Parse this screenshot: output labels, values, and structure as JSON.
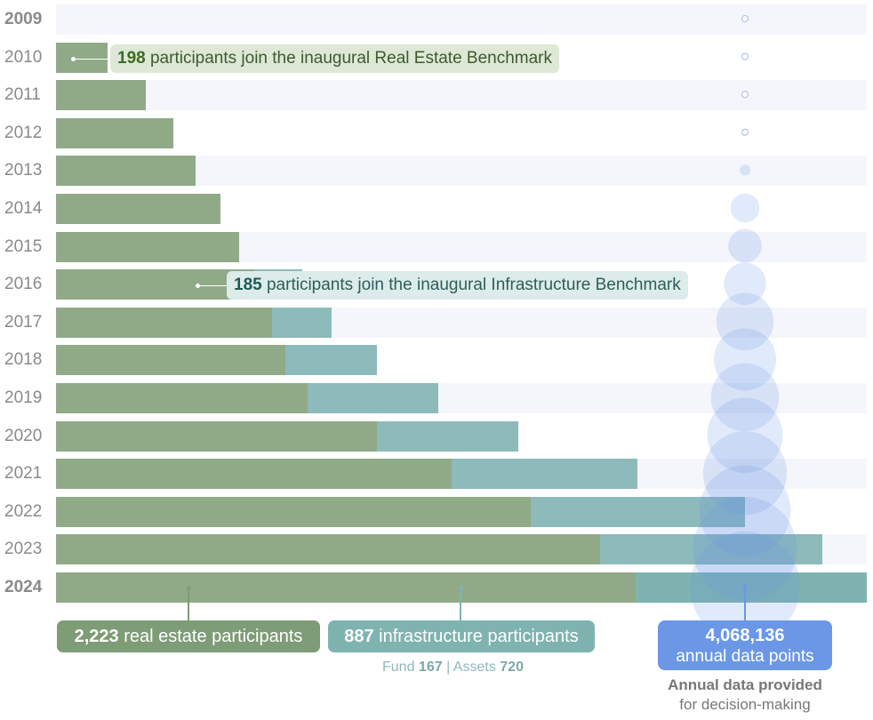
{
  "chart_data": {
    "type": "bar",
    "stacked": true,
    "orientation": "horizontal",
    "categories": [
      "2009",
      "2010",
      "2011",
      "2012",
      "2013",
      "2014",
      "2015",
      "2016",
      "2017",
      "2018",
      "2019",
      "2020",
      "2021",
      "2022",
      "2023",
      "2024"
    ],
    "series": [
      {
        "name": "real estate participants",
        "values": [
          0,
          198,
          344,
          450,
          535,
          630,
          703,
          759,
          828,
          880,
          966,
          1230,
          1519,
          1821,
          2086,
          2223
        ]
      },
      {
        "name": "infrastructure participants",
        "values": [
          0,
          0,
          0,
          0,
          0,
          0,
          0,
          185,
          228,
          350,
          502,
          542,
          710,
          821,
          853,
          887
        ]
      }
    ],
    "bubble_series": {
      "name": "annual data points",
      "values": [
        0,
        0,
        0,
        0,
        40000,
        280000,
        380000,
        600000,
        1100000,
        1300000,
        1550000,
        1900000,
        2350000,
        2800000,
        3600000,
        4068136
      ]
    },
    "highlighted_years": [
      "2009",
      "2024"
    ],
    "xlim": [
      0,
      3110
    ],
    "colors": {
      "real_estate": "#90aa88",
      "infrastructure": "#8dbaba",
      "bubbles": "#6b97e6",
      "band": "#f4f6fb"
    }
  },
  "callouts": {
    "re": {
      "num": "198",
      "text": " participants join the inaugural Real Estate Benchmark"
    },
    "inf": {
      "num": "185",
      "text": " participants join the inaugural Infrastructure Benchmark"
    }
  },
  "totals": {
    "re": {
      "num": "2,223",
      "text": " real estate participants"
    },
    "inf": {
      "num": "887",
      "text": " infrastructure participants"
    }
  },
  "breakdown": {
    "fund_label": "Fund ",
    "fund_value": "167",
    "sep": " | ",
    "assets_label": "Assets ",
    "assets_value": "720"
  },
  "data_points": {
    "value": "4,068,136",
    "label": "annual data points"
  },
  "note": {
    "line1": "Annual data provided",
    "line2": "for decision-making"
  }
}
